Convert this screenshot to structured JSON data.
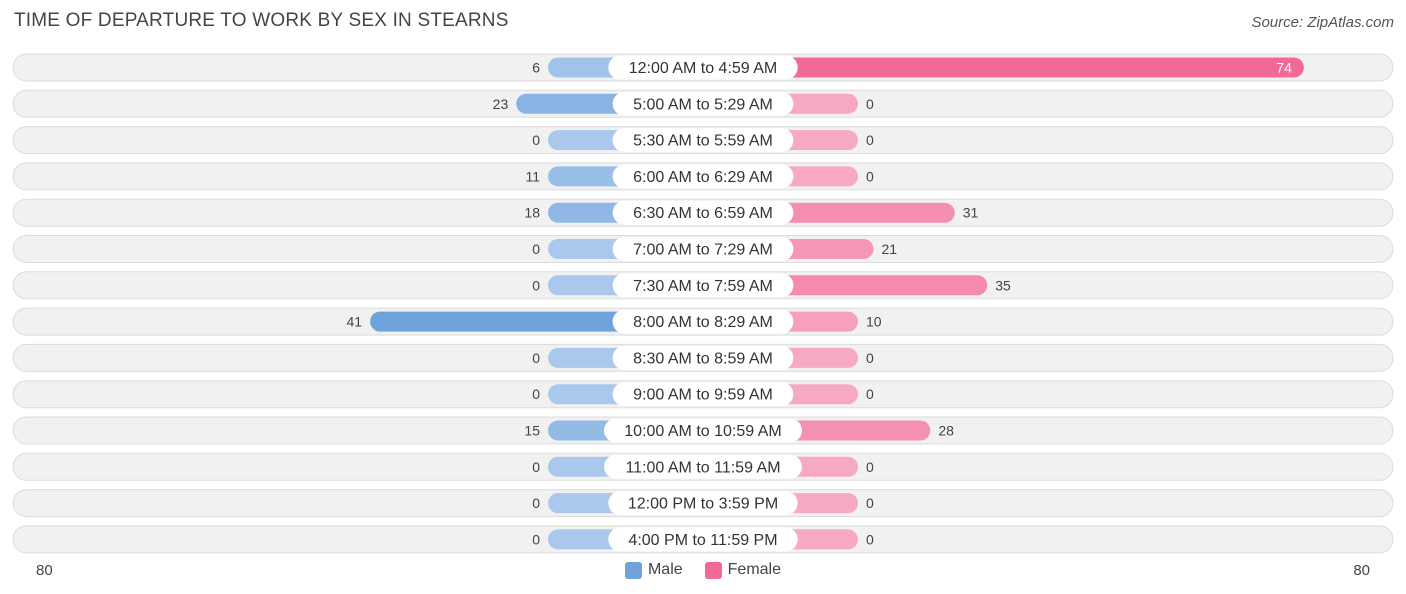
{
  "chart_data": {
    "type": "bar",
    "orientation": "horizontal-diverging",
    "title": "TIME OF DEPARTURE TO WORK BY SEX IN STEARNS",
    "source": "Source: ZipAtlas.com",
    "categories": [
      "12:00 AM to 4:59 AM",
      "5:00 AM to 5:29 AM",
      "5:30 AM to 5:59 AM",
      "6:00 AM to 6:29 AM",
      "6:30 AM to 6:59 AM",
      "7:00 AM to 7:29 AM",
      "7:30 AM to 7:59 AM",
      "8:00 AM to 8:29 AM",
      "8:30 AM to 8:59 AM",
      "9:00 AM to 9:59 AM",
      "10:00 AM to 10:59 AM",
      "11:00 AM to 11:59 AM",
      "12:00 PM to 3:59 PM",
      "4:00 PM to 11:59 PM"
    ],
    "series": [
      {
        "name": "Male",
        "values": [
          6,
          23,
          0,
          11,
          18,
          0,
          0,
          41,
          0,
          0,
          15,
          0,
          0,
          0
        ]
      },
      {
        "name": "Female",
        "values": [
          74,
          0,
          0,
          0,
          31,
          21,
          35,
          10,
          0,
          0,
          28,
          0,
          0,
          0
        ]
      }
    ],
    "xlim": [
      -80,
      80
    ],
    "axis_min_label": "80",
    "axis_max_label": "80",
    "legend_position": "bottom-center",
    "colors": {
      "male": "#6fa3dc",
      "male_light": "#a9c8ec",
      "female": "#f06a95",
      "female_light": "#f7a9c3",
      "row_bg": "#f1f1f1",
      "row_border": "#dcdcdc"
    }
  }
}
